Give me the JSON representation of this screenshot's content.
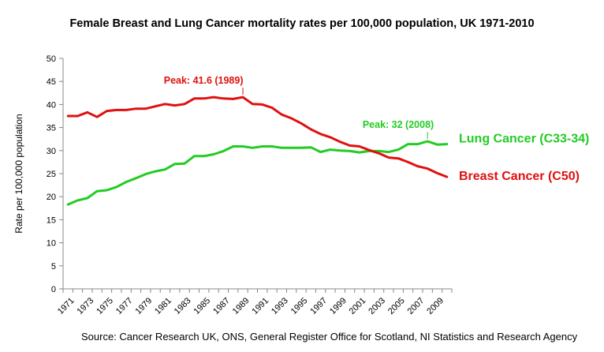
{
  "chart_data": {
    "type": "line",
    "title": "Female Breast and Lung Cancer mortality rates per 100,000 population, UK 1971-2010",
    "ylabel": "Rate per 100,000 population",
    "xlabel": "",
    "ylim": [
      0,
      50
    ],
    "yticks": [
      "0",
      "5",
      "10",
      "15",
      "20",
      "25",
      "30",
      "35",
      "40",
      "45",
      "50"
    ],
    "xticks": [
      "1971",
      "1973",
      "1975",
      "1977",
      "1979",
      "1981",
      "1983",
      "1985",
      "1987",
      "1989",
      "1991",
      "1993",
      "1995",
      "1997",
      "1999",
      "2001",
      "2003",
      "2005",
      "2007",
      "2009"
    ],
    "x": [
      1971,
      1972,
      1973,
      1974,
      1975,
      1976,
      1977,
      1978,
      1979,
      1980,
      1981,
      1982,
      1983,
      1984,
      1985,
      1986,
      1987,
      1988,
      1989,
      1990,
      1991,
      1992,
      1993,
      1994,
      1995,
      1996,
      1997,
      1998,
      1999,
      2000,
      2001,
      2002,
      2003,
      2004,
      2005,
      2006,
      2007,
      2008,
      2009,
      2010
    ],
    "grid": false,
    "series": [
      {
        "name": "Lung Cancer (C33-34)",
        "color": "#22cc22",
        "values": [
          18.3,
          19.2,
          19.7,
          21.2,
          21.4,
          22.1,
          23.2,
          24.0,
          24.9,
          25.5,
          25.9,
          27.1,
          27.2,
          28.8,
          28.8,
          29.2,
          29.9,
          30.9,
          30.9,
          30.6,
          30.9,
          30.9,
          30.6,
          30.6,
          30.6,
          30.7,
          29.7,
          30.2,
          30.0,
          29.9,
          29.6,
          29.9,
          29.9,
          29.7,
          30.2,
          31.4,
          31.4,
          32.0,
          31.3,
          31.4
        ]
      },
      {
        "name": "Breast Cancer (C50)",
        "color": "#e01010",
        "values": [
          37.5,
          37.5,
          38.3,
          37.3,
          38.6,
          38.8,
          38.8,
          39.1,
          39.1,
          39.6,
          40.1,
          39.8,
          40.1,
          41.3,
          41.3,
          41.6,
          41.3,
          41.2,
          41.6,
          40.1,
          40.0,
          39.3,
          37.8,
          37.0,
          35.9,
          34.6,
          33.6,
          32.9,
          31.9,
          31.1,
          30.9,
          30.1,
          29.4,
          28.5,
          28.3,
          27.5,
          26.6,
          26.1,
          25.1,
          24.3
        ]
      }
    ],
    "annotations": [
      {
        "text": "Peak: 41.6 (1989)",
        "series": 1,
        "x": 1989,
        "y": 41.6,
        "color": "#e01010"
      },
      {
        "text": "Peak: 32 (2008)",
        "series": 0,
        "x": 2008,
        "y": 32.0,
        "color": "#22cc22"
      }
    ]
  },
  "source": "Source: Cancer Research UK, ONS, General Register Office for Scotland, NI Statistics and Research Agency"
}
